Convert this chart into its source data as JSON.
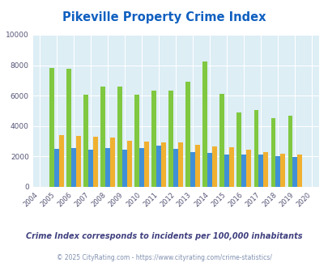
{
  "title": "Pikeville Property Crime Index",
  "years": [
    2004,
    2005,
    2006,
    2007,
    2008,
    2009,
    2010,
    2011,
    2012,
    2013,
    2014,
    2015,
    2016,
    2017,
    2018,
    2019,
    2020
  ],
  "pikeville": [
    null,
    7800,
    7750,
    6050,
    6600,
    6600,
    6050,
    6300,
    6300,
    6900,
    8250,
    6100,
    4900,
    5050,
    4500,
    4700,
    null
  ],
  "kentucky": [
    null,
    2500,
    2550,
    2450,
    2550,
    2450,
    2550,
    2700,
    2500,
    2300,
    2250,
    2150,
    2150,
    2150,
    2000,
    1950,
    null
  ],
  "national": [
    null,
    3400,
    3350,
    3300,
    3250,
    3050,
    3000,
    2950,
    2900,
    2750,
    2650,
    2600,
    2450,
    2300,
    2200,
    2150,
    null
  ],
  "pikeville_color": "#80c840",
  "kentucky_color": "#4090d8",
  "national_color": "#f0b030",
  "bg_color": "#ddeef5",
  "ylim": [
    0,
    10000
  ],
  "yticks": [
    0,
    2000,
    4000,
    6000,
    8000,
    10000
  ],
  "subtitle": "Crime Index corresponds to incidents per 100,000 inhabitants",
  "footer": "© 2025 CityRating.com - https://www.cityrating.com/crime-statistics/",
  "title_color": "#1060c0",
  "subtitle_color": "#404080",
  "footer_color": "#8090b0"
}
